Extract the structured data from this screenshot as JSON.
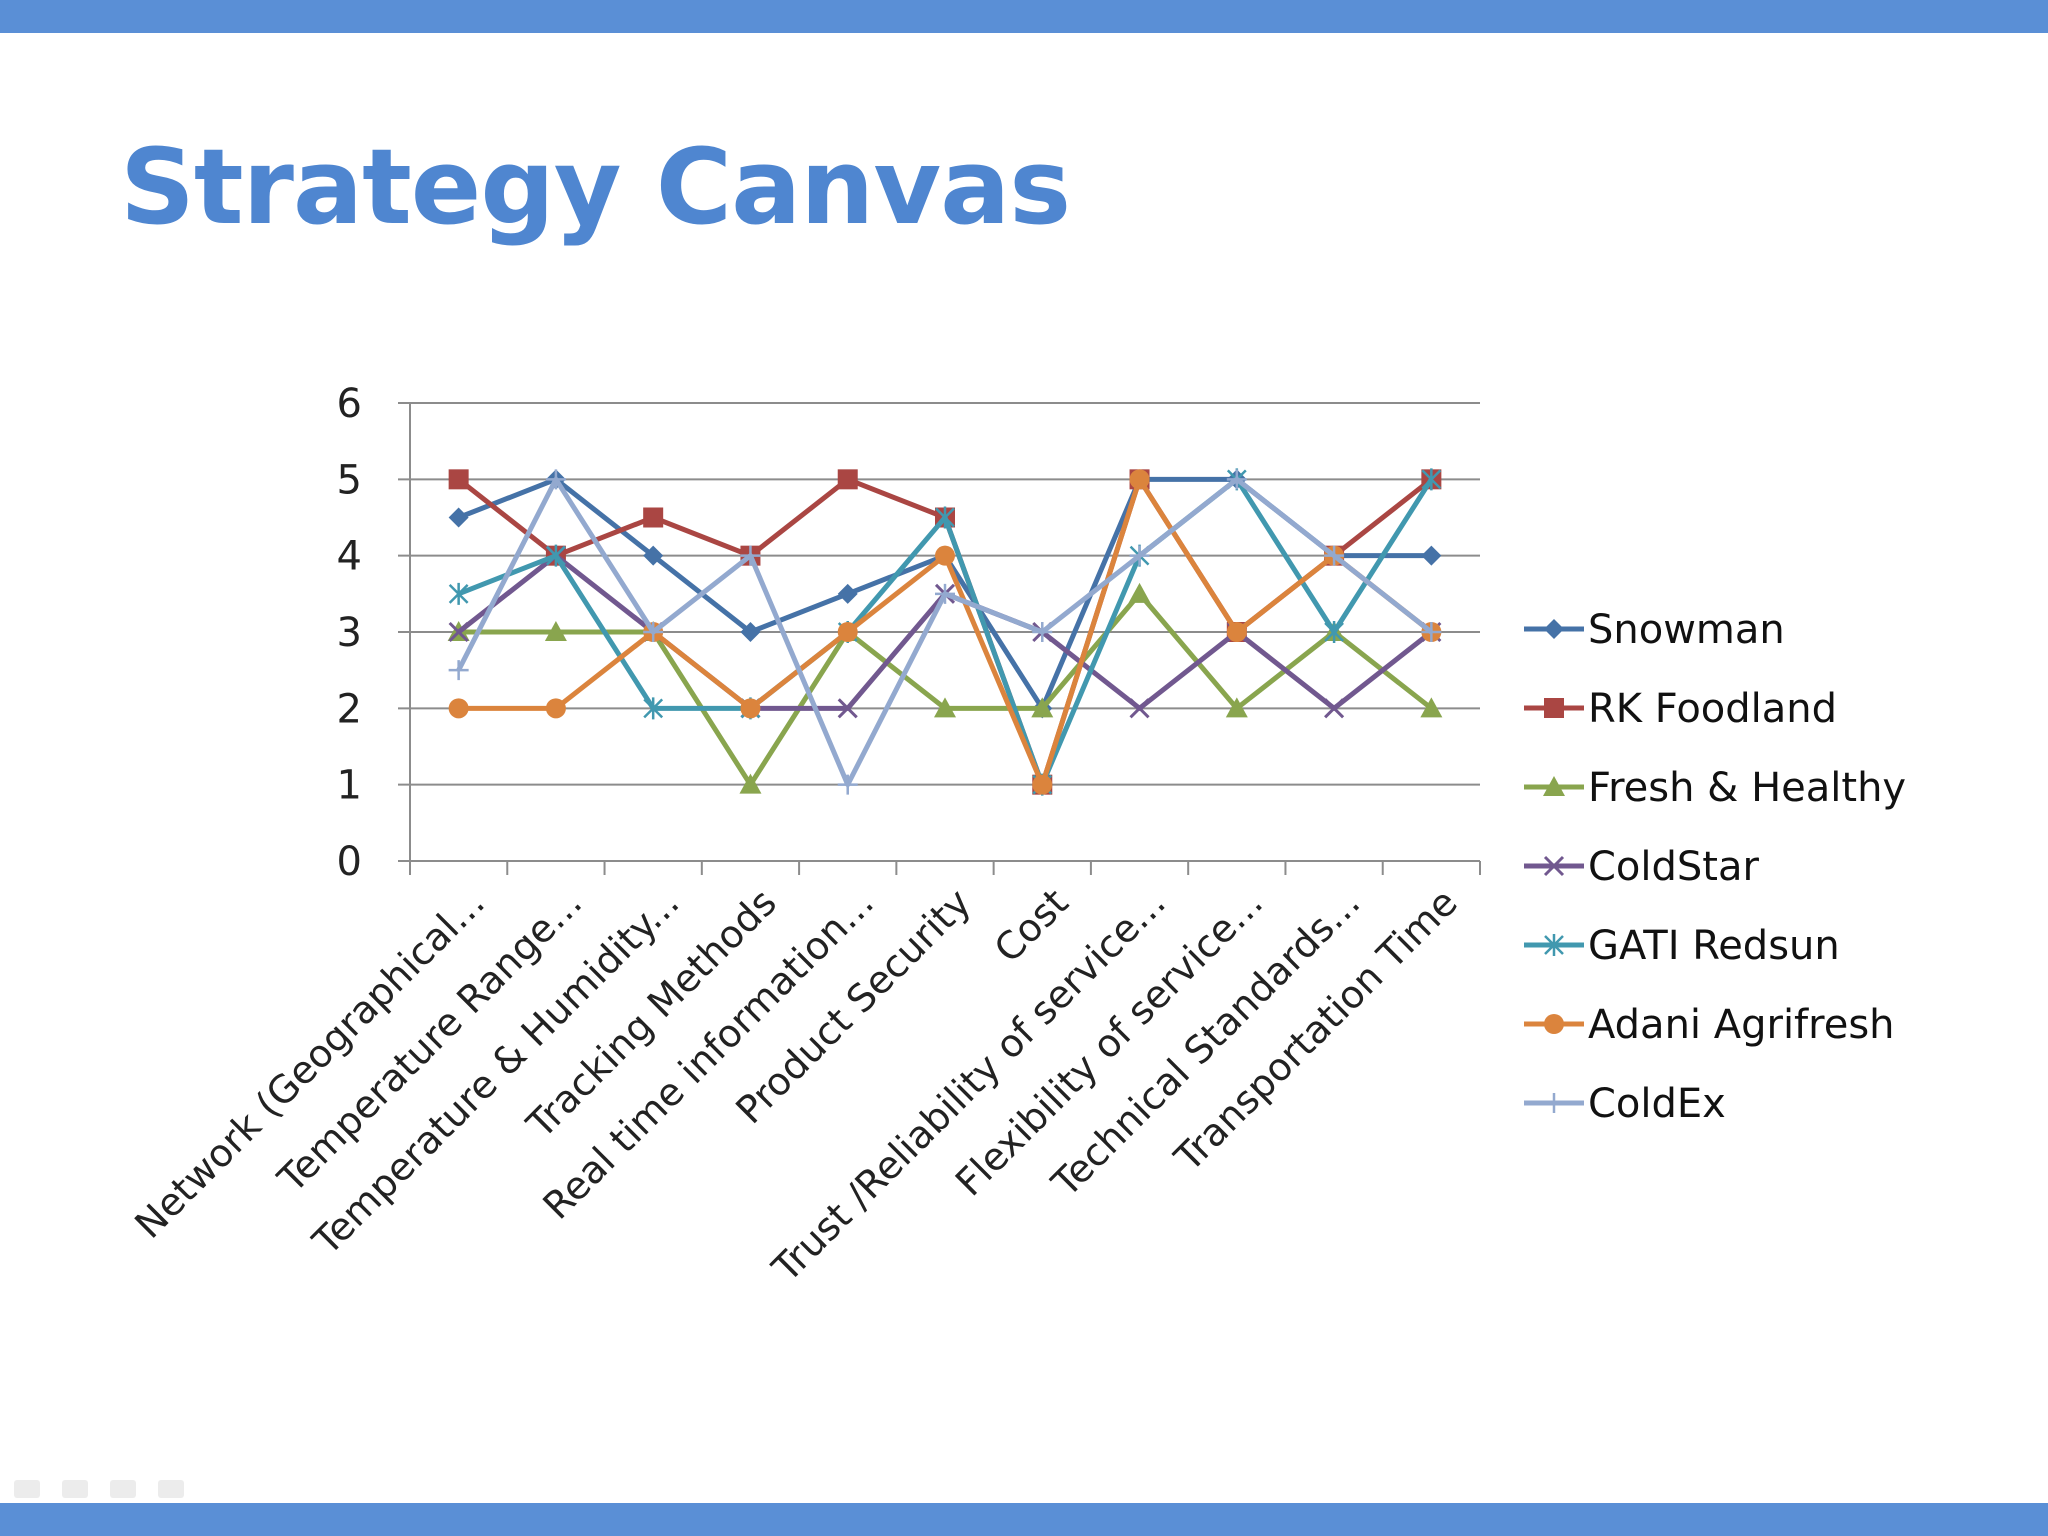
{
  "slide": {
    "title": "Strategy Canvas",
    "accent_color": "#5a8fd6",
    "title_color": "#4f86d0"
  },
  "chart_data": {
    "type": "line",
    "title": "",
    "xlabel": "",
    "ylabel": "",
    "ylim": [
      0,
      6
    ],
    "yticks": [
      0,
      1,
      2,
      3,
      4,
      5,
      6
    ],
    "grid": true,
    "legend_position": "right",
    "categories": [
      "Network (Geographical...",
      "Temperature Range...",
      "Temperature & Humidity...",
      "Tracking Methods",
      "Real time information...",
      "Product Security",
      "Cost",
      "Trust /Reliability of service...",
      "Flexibility of service...",
      "Technical Standards...",
      "Transportation Time"
    ],
    "series": [
      {
        "name": "Snowman",
        "color": "#4572a7",
        "marker": "diamond",
        "values": [
          4.5,
          5,
          4,
          3,
          3.5,
          4,
          2,
          5,
          5,
          4,
          4
        ]
      },
      {
        "name": "RK Foodland",
        "color": "#aa4643",
        "marker": "square",
        "values": [
          5,
          4,
          4.5,
          4,
          5,
          4.5,
          1,
          5,
          3,
          4,
          5
        ]
      },
      {
        "name": "Fresh & Healthy",
        "color": "#89a54e",
        "marker": "triangle",
        "values": [
          3,
          3,
          3,
          1,
          3,
          2,
          2,
          3.5,
          2,
          3,
          2
        ]
      },
      {
        "name": "ColdStar",
        "color": "#71588f",
        "marker": "x",
        "values": [
          3,
          4,
          3,
          2,
          2,
          3.5,
          3,
          2,
          3,
          2,
          3
        ]
      },
      {
        "name": "GATI Redsun",
        "color": "#4198af",
        "marker": "star",
        "values": [
          3.5,
          4,
          2,
          2,
          3,
          4.5,
          1,
          4,
          5,
          3,
          5
        ]
      },
      {
        "name": "Adani Agrifresh",
        "color": "#db843d",
        "marker": "circle",
        "values": [
          2,
          2,
          3,
          2,
          3,
          4,
          1,
          5,
          3,
          4,
          3
        ]
      },
      {
        "name": "ColdEx",
        "color": "#93a9cf",
        "marker": "plus",
        "values": [
          2.5,
          5,
          3,
          4,
          1,
          3.5,
          3,
          4,
          5,
          4,
          3
        ]
      }
    ]
  }
}
